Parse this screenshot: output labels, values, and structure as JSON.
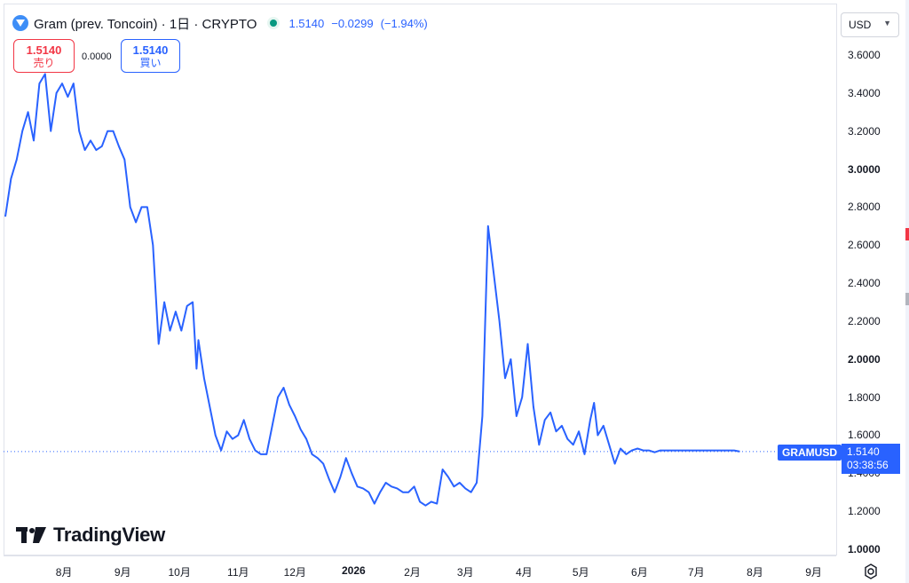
{
  "header": {
    "symbol_title": "Gram (prev. Toncoin) · 1日 · CRYPTO",
    "last": "1.5140",
    "change": "−0.0299",
    "change_pct": "(−1.94%)"
  },
  "trade": {
    "sell_price": "1.5140",
    "sell_label": "売り",
    "spread": "0.0000",
    "buy_price": "1.5140",
    "buy_label": "買い"
  },
  "scale": {
    "currency": "USD",
    "currency_chevron": "chevron-down-icon",
    "price_label_symbol": "GRAMUSD",
    "price_label_value": "1.5140",
    "price_label_countdown": "03:38:56"
  },
  "watermark": "TradingView",
  "colors": {
    "line": "#2962ff",
    "sell": "#f23645",
    "buy": "#2962ff",
    "market_open": "#089981"
  },
  "chart_data": {
    "type": "line",
    "series": [
      {
        "x": [
          "2025-07-01",
          "2025-07-04",
          "2025-07-07",
          "2025-07-10",
          "2025-07-13",
          "2025-07-16",
          "2025-07-19",
          "2025-07-22",
          "2025-07-25",
          "2025-07-28",
          "2025-07-31",
          "2025-08-03",
          "2025-08-06",
          "2025-08-09",
          "2025-08-12",
          "2025-08-15",
          "2025-08-18",
          "2025-08-21",
          "2025-08-24",
          "2025-08-27",
          "2025-08-30",
          "2025-09-02",
          "2025-09-05",
          "2025-09-08",
          "2025-09-11",
          "2025-09-14",
          "2025-09-17",
          "2025-09-20",
          "2025-09-23",
          "2025-09-26",
          "2025-09-29",
          "2025-10-02",
          "2025-10-05",
          "2025-10-08",
          "2025-10-10",
          "2025-10-11",
          "2025-10-14",
          "2025-10-17",
          "2025-10-20",
          "2025-10-23",
          "2025-10-26",
          "2025-10-29",
          "2025-11-01",
          "2025-11-04",
          "2025-11-07",
          "2025-11-10",
          "2025-11-13",
          "2025-11-16",
          "2025-11-19",
          "2025-11-22",
          "2025-11-25",
          "2025-11-28",
          "2025-12-01",
          "2025-12-04",
          "2025-12-07",
          "2025-12-10",
          "2025-12-13",
          "2025-12-16",
          "2025-12-19",
          "2025-12-22",
          "2025-12-25",
          "2025-12-28",
          "2025-12-31",
          "2026-01-03",
          "2026-01-06",
          "2026-01-09",
          "2026-01-12",
          "2026-01-15",
          "2026-01-18",
          "2026-01-21",
          "2026-01-24",
          "2026-01-27",
          "2026-01-30",
          "2026-02-02",
          "2026-02-05",
          "2026-02-08",
          "2026-02-11",
          "2026-02-14",
          "2026-02-17",
          "2026-02-20",
          "2026-02-23",
          "2026-02-26",
          "2026-03-01",
          "2026-03-04",
          "2026-03-07",
          "2026-03-10",
          "2026-03-13",
          "2026-03-16",
          "2026-03-19",
          "2026-03-22",
          "2026-03-25",
          "2026-03-28",
          "2026-03-31",
          "2026-04-03",
          "2026-04-06",
          "2026-04-09",
          "2026-04-12",
          "2026-04-15",
          "2026-04-18",
          "2026-04-21",
          "2026-04-24",
          "2026-04-27",
          "2026-04-30",
          "2026-05-03",
          "2026-05-06",
          "2026-05-08",
          "2026-05-10",
          "2026-05-13",
          "2026-05-16",
          "2026-05-19",
          "2026-05-22",
          "2026-05-25",
          "2026-05-28",
          "2026-05-31",
          "2026-06-03",
          "2026-06-06",
          "2026-06-09",
          "2026-06-12",
          "2026-06-15",
          "2026-06-18",
          "2026-06-21",
          "2026-06-24",
          "2026-06-27",
          "2026-06-30",
          "2026-07-03",
          "2026-07-06",
          "2026-07-09",
          "2026-07-12",
          "2026-07-15",
          "2026-07-18",
          "2026-07-21",
          "2026-07-24"
        ],
        "values": [
          2.75,
          2.95,
          3.05,
          3.2,
          3.3,
          3.15,
          3.45,
          3.5,
          3.2,
          3.4,
          3.45,
          3.38,
          3.45,
          3.2,
          3.1,
          3.15,
          3.1,
          3.12,
          3.2,
          3.2,
          3.12,
          3.05,
          2.8,
          2.72,
          2.8,
          2.8,
          2.6,
          2.08,
          2.3,
          2.15,
          2.25,
          2.15,
          2.28,
          2.3,
          1.95,
          2.1,
          1.9,
          1.75,
          1.6,
          1.52,
          1.62,
          1.58,
          1.6,
          1.68,
          1.58,
          1.52,
          1.5,
          1.5,
          1.65,
          1.8,
          1.85,
          1.76,
          1.7,
          1.63,
          1.58,
          1.5,
          1.48,
          1.45,
          1.37,
          1.3,
          1.38,
          1.48,
          1.4,
          1.33,
          1.32,
          1.3,
          1.24,
          1.3,
          1.35,
          1.33,
          1.32,
          1.3,
          1.3,
          1.33,
          1.25,
          1.23,
          1.25,
          1.24,
          1.42,
          1.38,
          1.33,
          1.35,
          1.32,
          1.3,
          1.35,
          1.7,
          2.7,
          2.45,
          2.2,
          1.9,
          2.0,
          1.7,
          1.8,
          2.08,
          1.75,
          1.55,
          1.68,
          1.72,
          1.62,
          1.65,
          1.58,
          1.55,
          1.62,
          1.5,
          1.68,
          1.77,
          1.6,
          1.65,
          1.55,
          1.45,
          1.53,
          1.5,
          1.52,
          1.53,
          1.52,
          1.52,
          1.51,
          1.52,
          1.52,
          1.52,
          1.52,
          1.52,
          1.52,
          1.52,
          1.52,
          1.52,
          1.52,
          1.52,
          1.52,
          1.52,
          1.52,
          1.514
        ],
        "name": ""
      }
    ],
    "y_ticks": [
      "3.6000",
      "3.4000",
      "3.2000",
      "3.0000",
      "2.8000",
      "2.6000",
      "2.4000",
      "2.2000",
      "2.0000",
      "1.8000",
      "1.6000",
      "1.4000",
      "1.2000",
      "1.0000"
    ],
    "y_ticks_bold": [
      "3.0000",
      "2.0000",
      "1.0000"
    ],
    "x_ticks": [
      "8月",
      "9月",
      "10月",
      "11月",
      "12月",
      "2026",
      "2月",
      "3月",
      "4月",
      "5月",
      "6月",
      "7月",
      "8月",
      "9月"
    ],
    "ylim": [
      1.0,
      3.6
    ],
    "grid": false,
    "current_price_line": 1.514
  }
}
